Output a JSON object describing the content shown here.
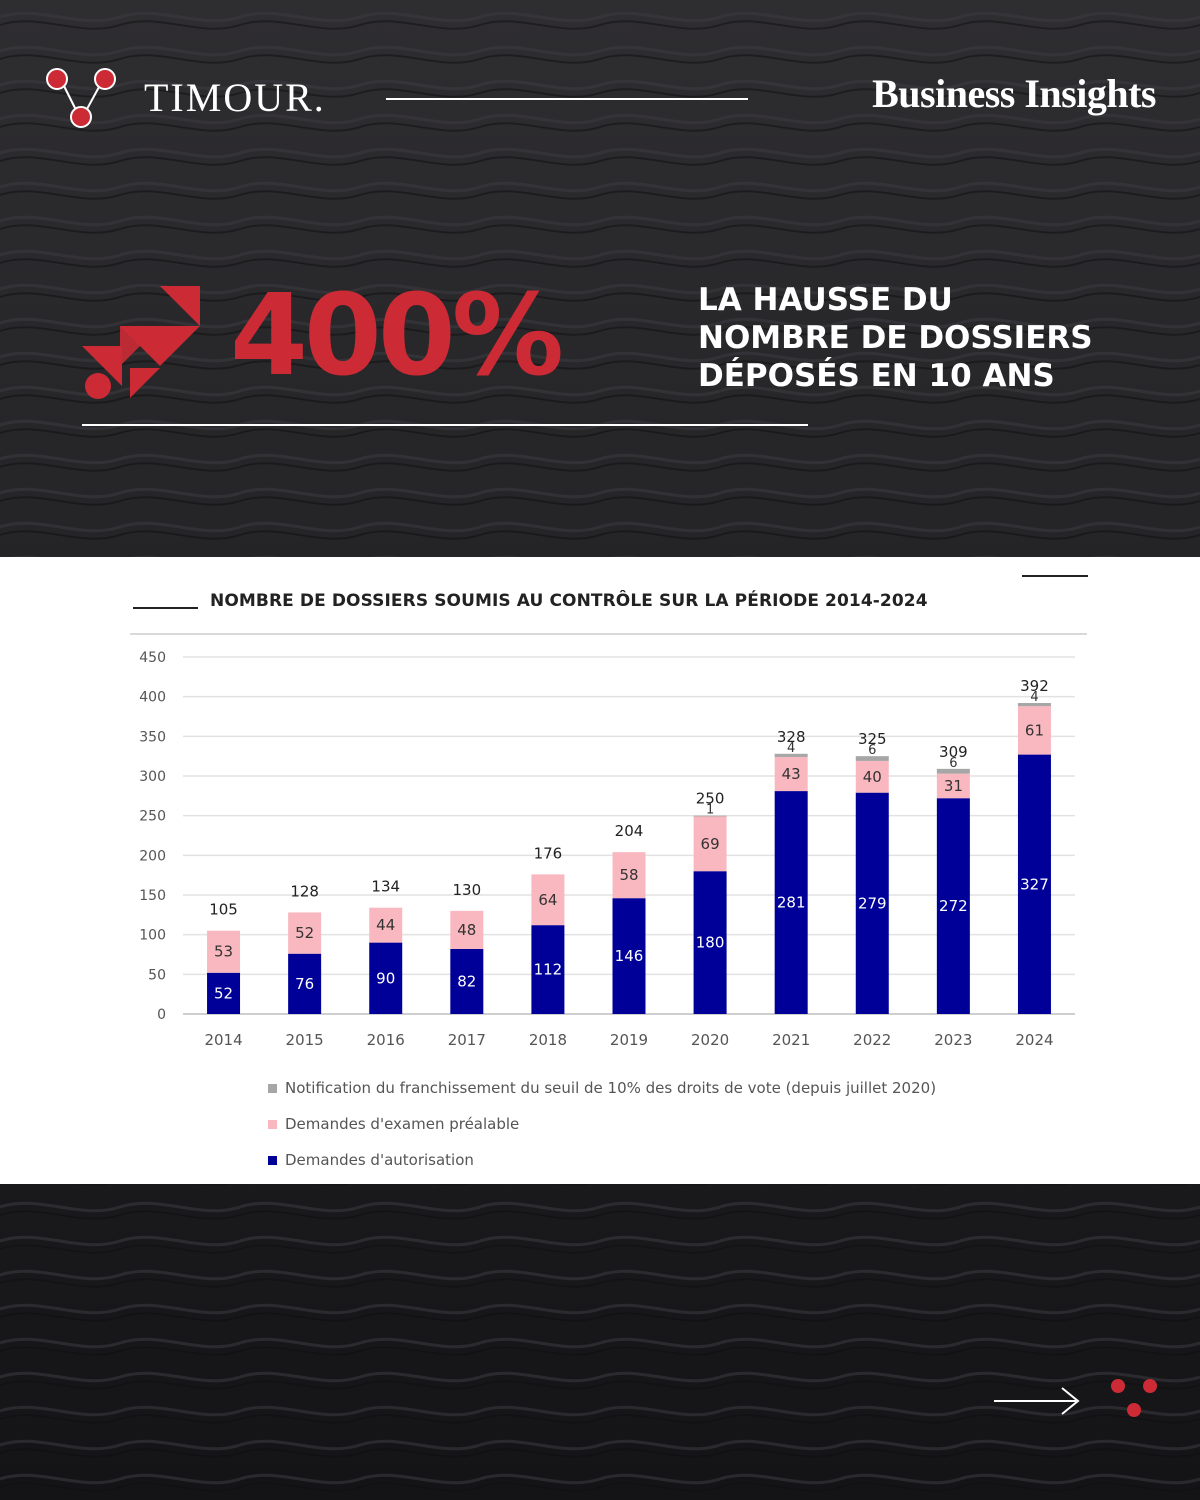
{
  "header": {
    "brand": "TIMOUR.",
    "tagline": "Business Insights"
  },
  "hero": {
    "stat": "400%",
    "lines": [
      "LA HAUSSE DU",
      "NOMBRE DE DOSSIERS",
      "DÉPOSÉS EN 10 ANS"
    ]
  },
  "colors": {
    "accent": "#cc2b35",
    "autorisation": "#000099",
    "examen": "#f9b8bf",
    "notification": "#a6a6a6"
  },
  "icons": {
    "arrow": "arrow-right-icon",
    "logo": "timour-logo-icon",
    "hero": "stepped-arrow-icon"
  },
  "chart_data": {
    "type": "bar",
    "stacked": true,
    "title": "NOMBRE DE DOSSIERS SOUMIS AU CONTRÔLE SUR LA PÉRIODE 2014-2024",
    "xlabel": "",
    "ylabel": "",
    "ylim": [
      0,
      450
    ],
    "yticks": [
      0,
      50,
      100,
      150,
      200,
      250,
      300,
      350,
      400,
      450
    ],
    "grid": true,
    "legend_position": "bottom-left",
    "categories": [
      "2014",
      "2015",
      "2016",
      "2017",
      "2018",
      "2019",
      "2020",
      "2021",
      "2022",
      "2023",
      "2024"
    ],
    "series": [
      {
        "name": "Demandes d'autorisation",
        "values": [
          52,
          76,
          90,
          82,
          112,
          146,
          180,
          281,
          279,
          272,
          327
        ]
      },
      {
        "name": "Demandes d'examen préalable",
        "values": [
          53,
          52,
          44,
          48,
          64,
          58,
          69,
          43,
          40,
          31,
          61
        ]
      },
      {
        "name": "Notification du franchissement du seuil de 10% des droits de vote (depuis juillet 2020)",
        "values": [
          0,
          0,
          0,
          0,
          0,
          0,
          1,
          4,
          6,
          6,
          4
        ]
      }
    ],
    "totals": [
      105,
      128,
      134,
      130,
      176,
      204,
      250,
      328,
      325,
      309,
      392
    ]
  }
}
